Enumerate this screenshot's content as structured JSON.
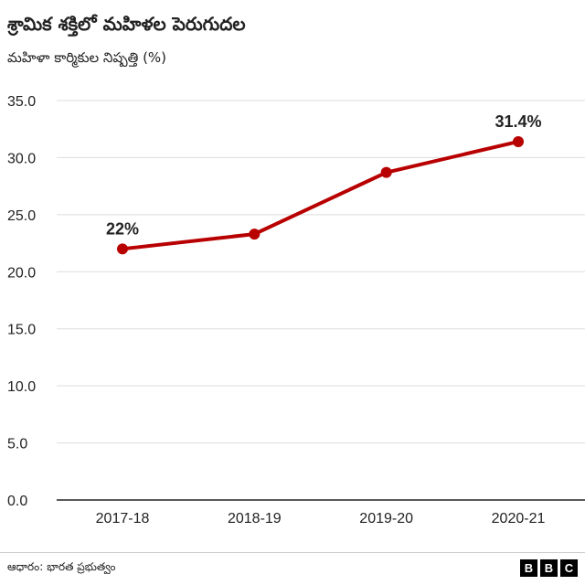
{
  "title": "శ్రామిక శక్తిలో మహిళల పెరుగుదల",
  "subtitle": "మహిళా కార్మికుల నిష్పత్తి (%)",
  "source": "ఆధారం: భారత ప్రభుత్వం",
  "logo": {
    "letters": [
      "B",
      "B",
      "C"
    ]
  },
  "colors": {
    "series": "#b80000",
    "grid": "#dddddd",
    "baseline": "#222222"
  },
  "chart_data": {
    "type": "line",
    "categories": [
      "2017-18",
      "2018-19",
      "2019-20",
      "2020-21"
    ],
    "series": [
      {
        "values": [
          22,
          23.3,
          28.7,
          31.4
        ]
      }
    ],
    "data_labels": [
      "22%",
      null,
      null,
      "31.4%"
    ],
    "ylim": [
      0,
      35
    ],
    "yticks": [
      "0.0",
      "5.0",
      "10.0",
      "15.0",
      "20.0",
      "25.0",
      "30.0",
      "35.0"
    ],
    "grid": true,
    "legend": "none"
  }
}
